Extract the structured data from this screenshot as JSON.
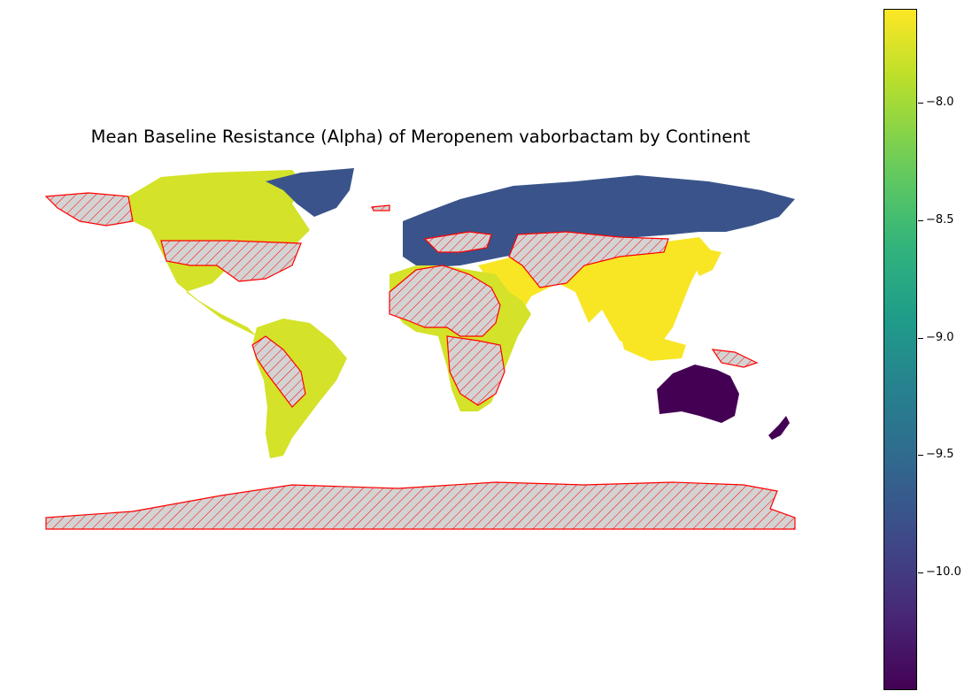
{
  "title": "Mean Baseline Resistance (Alpha) of Meropenem vaborbactam by Continent",
  "colorbar": {
    "colormap": "viridis",
    "min": -10.5,
    "max": -7.6,
    "ticks": [
      "−8.0",
      "−8.5",
      "−9.0",
      "−9.5",
      "−10.0"
    ],
    "tick_values": [
      -8.0,
      -8.5,
      -9.0,
      -9.5,
      -10.0
    ]
  },
  "colors": {
    "no_data_fill": "#d3d3d3",
    "no_data_edge": "#ff0000"
  },
  "chart_data": {
    "type": "choropleth",
    "metric": "Mean Baseline Resistance (Alpha)",
    "regions": [
      {
        "continent": "Asia",
        "value": -7.62
      },
      {
        "continent": "Africa",
        "value": -7.78
      },
      {
        "continent": "North America",
        "value": -7.78
      },
      {
        "continent": "South America",
        "value": -7.78
      },
      {
        "continent": "Europe",
        "value": -9.75
      },
      {
        "continent": "Oceania",
        "value": -10.5
      }
    ],
    "no_data": "hatched grey, red outline"
  }
}
